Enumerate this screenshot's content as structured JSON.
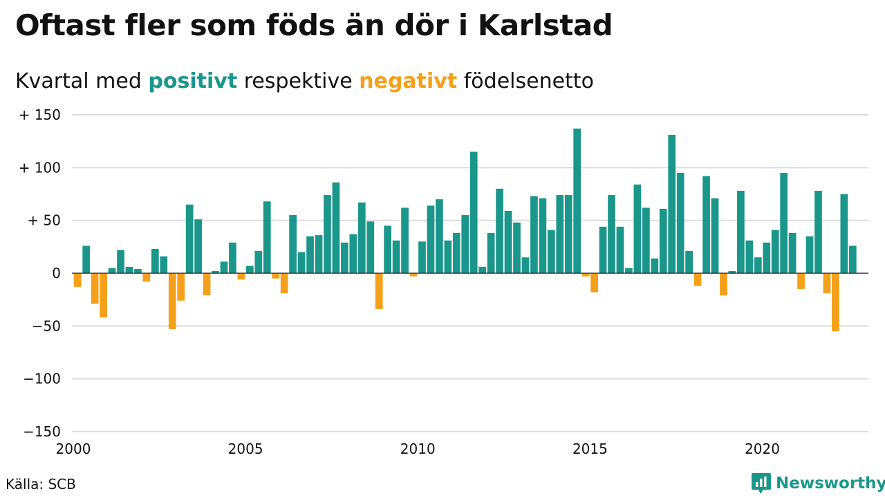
{
  "title": "Oftast fler som föds än dör i Karlstad",
  "subtitle": {
    "prefix": "Kvartal med",
    "positive_word": "positivt",
    "middle": "respektive",
    "negative_word": "negativt",
    "suffix": "födelsenetto"
  },
  "source": "Källa: SCB",
  "brand": "Newsworthy",
  "colors": {
    "positive": "#1a978a",
    "negative": "#f5a01a",
    "grid": "#dddddd",
    "baseline": "#333333",
    "text": "#111111"
  },
  "chart_data": {
    "type": "bar",
    "title": "Oftast fler som föds än dör i Karlstad",
    "subtitle": "Kvartal med positivt respektive negativt födelsenetto",
    "ylim": [
      -150,
      150
    ],
    "y_ticks": [
      150,
      100,
      50,
      0,
      -50,
      -100,
      -150
    ],
    "y_tick_labels": [
      "+ 150",
      "+ 100",
      "+  50",
      "0",
      "−50",
      "−100",
      "−150"
    ],
    "x_ticks": [
      2000,
      2005,
      2010,
      2015,
      2020
    ],
    "x_tick_labels": [
      "2000",
      "2005",
      "2010",
      "2015",
      "2020"
    ],
    "xlim": [
      2000,
      2023
    ],
    "grid": true,
    "categories": [
      "2000 Q1",
      "2000 Q2",
      "2000 Q3",
      "2000 Q4",
      "2001 Q1",
      "2001 Q2",
      "2001 Q3",
      "2001 Q4",
      "2002 Q1",
      "2002 Q2",
      "2002 Q3",
      "2002 Q4",
      "2003 Q1",
      "2003 Q2",
      "2003 Q3",
      "2003 Q4",
      "2004 Q1",
      "2004 Q2",
      "2004 Q3",
      "2004 Q4",
      "2005 Q1",
      "2005 Q2",
      "2005 Q3",
      "2005 Q4",
      "2006 Q1",
      "2006 Q2",
      "2006 Q3",
      "2006 Q4",
      "2007 Q1",
      "2007 Q2",
      "2007 Q3",
      "2007 Q4",
      "2008 Q1",
      "2008 Q2",
      "2008 Q3",
      "2008 Q4",
      "2009 Q1",
      "2009 Q2",
      "2009 Q3",
      "2009 Q4",
      "2010 Q1",
      "2010 Q2",
      "2010 Q3",
      "2010 Q4",
      "2011 Q1",
      "2011 Q2",
      "2011 Q3",
      "2011 Q4",
      "2012 Q1",
      "2012 Q2",
      "2012 Q3",
      "2012 Q4",
      "2013 Q1",
      "2013 Q2",
      "2013 Q3",
      "2013 Q4",
      "2014 Q1",
      "2014 Q2",
      "2014 Q3",
      "2014 Q4",
      "2015 Q1",
      "2015 Q2",
      "2015 Q3",
      "2015 Q4",
      "2016 Q1",
      "2016 Q2",
      "2016 Q3",
      "2016 Q4",
      "2017 Q1",
      "2017 Q2",
      "2017 Q3",
      "2017 Q4",
      "2018 Q1",
      "2018 Q2",
      "2018 Q3",
      "2018 Q4",
      "2019 Q1",
      "2019 Q2",
      "2019 Q3",
      "2019 Q4",
      "2020 Q1",
      "2020 Q2",
      "2020 Q3",
      "2020 Q4",
      "2021 Q1",
      "2021 Q2",
      "2021 Q3",
      "2021 Q4",
      "2022 Q1",
      "2022 Q2",
      "2022 Q3",
      "2022 Q4"
    ],
    "values": [
      -13,
      26,
      -29,
      -42,
      5,
      22,
      6,
      4,
      -8,
      23,
      16,
      -53,
      -26,
      65,
      51,
      -21,
      2,
      11,
      29,
      -6,
      7,
      21,
      68,
      -5,
      -19,
      55,
      20,
      35,
      36,
      74,
      86,
      29,
      37,
      67,
      49,
      -34,
      45,
      31,
      62,
      -3,
      30,
      64,
      70,
      31,
      38,
      55,
      115,
      6,
      38,
      80,
      59,
      48,
      15,
      73,
      71,
      41,
      74,
      74,
      137,
      -3,
      -18,
      44,
      74,
      44,
      5,
      84,
      62,
      14,
      61,
      131,
      95,
      21,
      -12,
      92,
      71,
      -21,
      2,
      78,
      31,
      15,
      29,
      41,
      95,
      38,
      -15,
      35,
      78,
      -19,
      -55,
      75,
      26,
      null
    ]
  }
}
